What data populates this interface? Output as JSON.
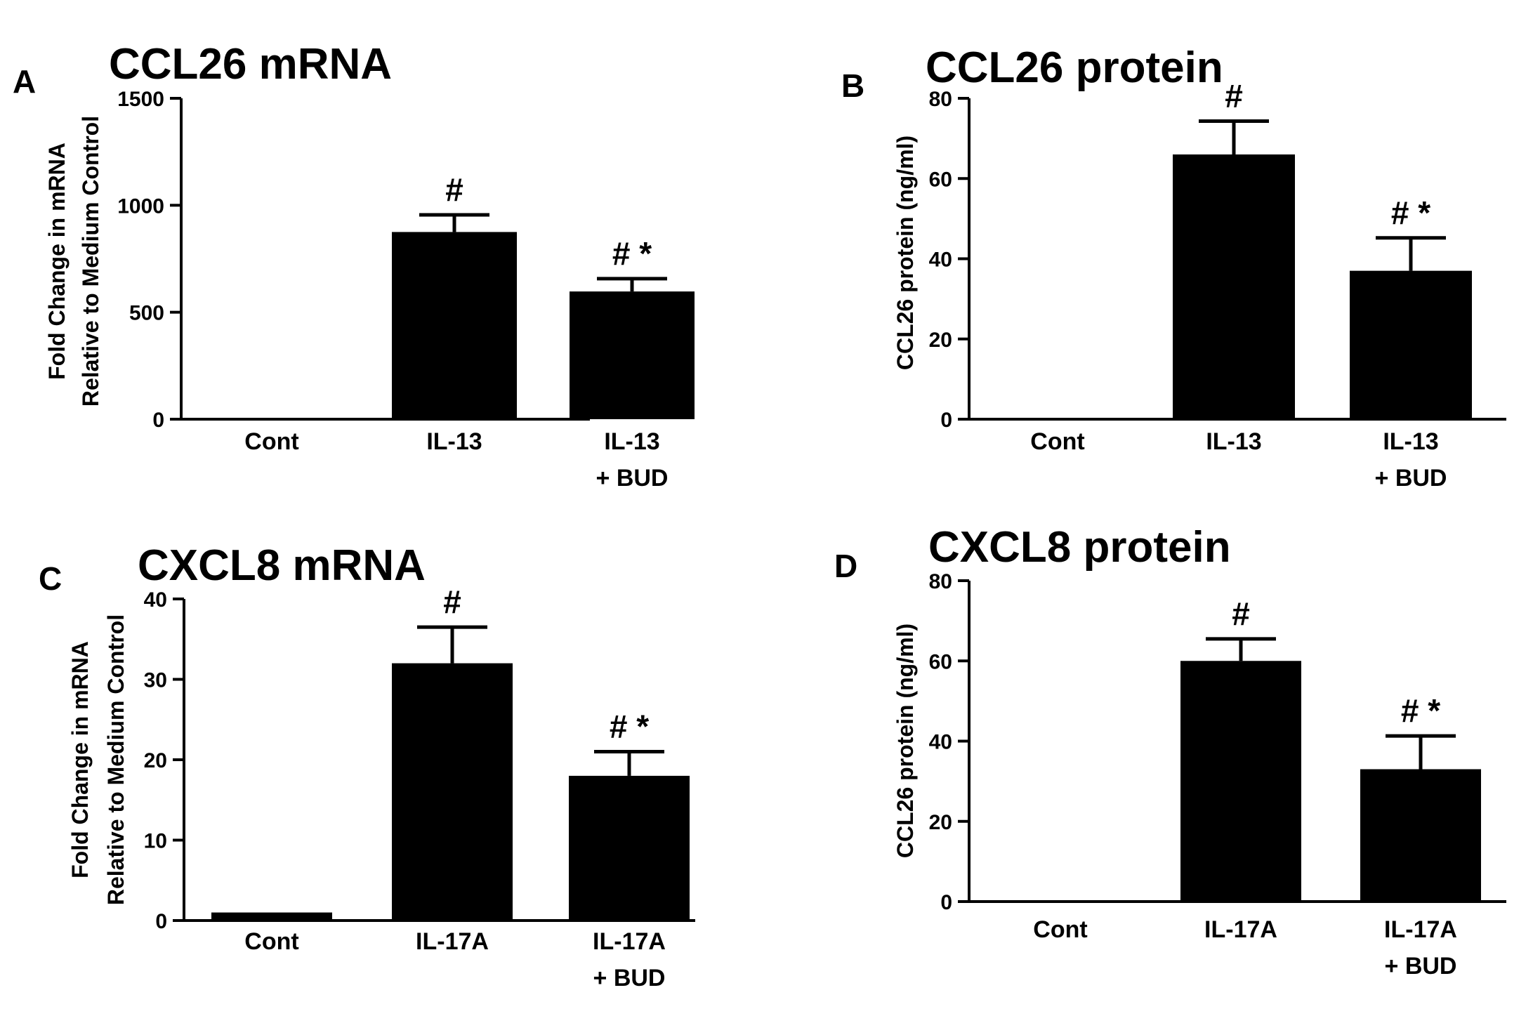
{
  "figure": {
    "colors": {
      "bar": "#000000",
      "axis": "#000000",
      "background": "#ffffff"
    }
  },
  "chart_data": [
    {
      "panel": "A",
      "type": "bar",
      "title": "CCL26 mRNA",
      "ylabel_lines": [
        "Fold Change in mRNA",
        "Relative to Medium Control"
      ],
      "xlabel": "",
      "categories": [
        [
          "Cont"
        ],
        [
          "IL-13"
        ],
        [
          "IL-13",
          "+ BUD"
        ]
      ],
      "values": [
        0,
        875,
        597
      ],
      "errors": [
        0,
        80,
        60
      ],
      "annotations": [
        "",
        "#",
        "# *"
      ],
      "ylim": [
        0,
        1500
      ],
      "yticks": [
        0,
        500,
        1000,
        1500
      ]
    },
    {
      "panel": "B",
      "type": "bar",
      "title": "CCL26 protein",
      "ylabel_lines": [
        "CCL26 protein (ng/ml)"
      ],
      "xlabel": "",
      "categories": [
        [
          "Cont"
        ],
        [
          "IL-13"
        ],
        [
          "IL-13",
          "+ BUD"
        ]
      ],
      "values": [
        0,
        66,
        37
      ],
      "errors": [
        0,
        8.3,
        8.2
      ],
      "annotations": [
        "",
        "#",
        "# *"
      ],
      "ylim": [
        0,
        80
      ],
      "yticks": [
        0,
        20,
        40,
        60,
        80
      ]
    },
    {
      "panel": "C",
      "type": "bar",
      "title": "CXCL8 mRNA",
      "ylabel_lines": [
        "Fold Change in mRNA",
        "Relative to Medium Control"
      ],
      "xlabel": "",
      "categories": [
        [
          "Cont"
        ],
        [
          "IL-17A"
        ],
        [
          "IL-17A",
          "+ BUD"
        ]
      ],
      "values": [
        1,
        32,
        18
      ],
      "errors": [
        0,
        4.5,
        3.0
      ],
      "annotations": [
        "",
        "#",
        "# *"
      ],
      "ylim": [
        0,
        40
      ],
      "yticks": [
        0,
        10,
        20,
        30,
        40
      ]
    },
    {
      "panel": "D",
      "type": "bar",
      "title": "CXCL8 protein",
      "ylabel_lines": [
        "CCL26 protein (ng/ml)"
      ],
      "xlabel": "",
      "categories": [
        [
          "Cont"
        ],
        [
          "IL-17A"
        ],
        [
          "IL-17A",
          "+ BUD"
        ]
      ],
      "values": [
        0,
        60,
        33
      ],
      "errors": [
        0,
        5.5,
        8.3
      ],
      "annotations": [
        "",
        "#",
        "# *"
      ],
      "ylim": [
        0,
        80
      ],
      "yticks": [
        0,
        20,
        40,
        60,
        80
      ]
    }
  ]
}
